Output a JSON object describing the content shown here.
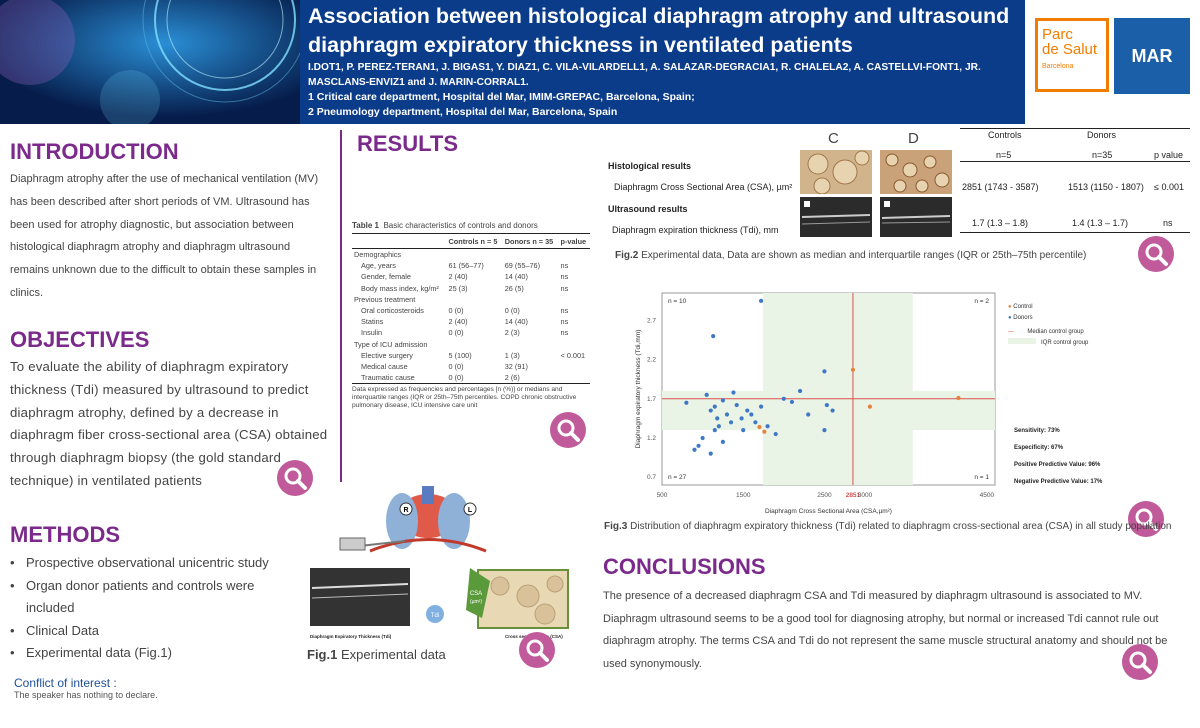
{
  "header": {
    "title": "Association between histological diaphragm atrophy and ultrasound diaphragm expiratory thickness in ventilated patients",
    "authors": "I.DOT1, P. PEREZ-TERAN1, J. BIGAS1, Y. DIAZ1, C. VILA-VILARDELL1, A. SALAZAR-DEGRACIA1, R. CHALELA2, A. CASTELLVI-FONT1, JR. MASCLANS-ENVIZ1 and J. MARIN-CORRAL1.",
    "affiliation1": "1 Critical care department, Hospital del Mar, IMIM-GREPAC, Barcelona, Spain;",
    "affiliation2": "2 Pneumology department, Hospital del Mar, Barcelona, Spain",
    "logo_parc_line1": "Parc",
    "logo_parc_line2": "de Salut",
    "logo_parc_city": "Barcelona",
    "logo_mar": "MAR"
  },
  "introduction": {
    "heading": "INTRODUCTION",
    "text": "Diaphragm atrophy after the use of mechanical ventilation (MV) has been described after short periods of VM. Ultrasound has been used for atrophy diagnostic, but association between histological diaphragm atrophy and diaphragm ultrasound remains unknown due to the difficult to obtain these samples in clinics."
  },
  "objectives": {
    "heading": "OBJECTIVES",
    "text": "To evaluate the ability of diaphragm expiratory thickness (Tdi) measured by ultrasound to predict diaphragm atrophy, defined by a decrease in diaphragm fiber cross-sectional area (CSA) obtained through diaphragm biopsy (the gold standard technique) in ventilated patients"
  },
  "methods": {
    "heading": "METHODS",
    "items": [
      "Prospective observational unicentric study",
      "Organ donor patients and controls were included",
      "Clinical Data",
      "Experimental data (Fig.1)"
    ]
  },
  "conflict": {
    "heading": "Conflict of interest :",
    "text": "The speaker has nothing to declare."
  },
  "results": {
    "heading": "RESULTS",
    "table1": {
      "caption_bold": "Table 1",
      "caption": "Basic characteristics of controls and donors",
      "headers": [
        "",
        "Controls n = 5",
        "Donors n = 35",
        "p-value"
      ],
      "rows": [
        [
          "Demographics",
          "",
          "",
          ""
        ],
        [
          "Age, years",
          "61 (56–77)",
          "69 (55–76)",
          "ns"
        ],
        [
          "Gender, female",
          "2 (40)",
          "14 (40)",
          "ns"
        ],
        [
          "Body mass index, kg/m²",
          "25 (3)",
          "26 (5)",
          "ns"
        ],
        [
          "Previous treatment",
          "",
          "",
          ""
        ],
        [
          "Oral corticosteroids",
          "0 (0)",
          "0 (0)",
          "ns"
        ],
        [
          "Statins",
          "2 (40)",
          "14 (40)",
          "ns"
        ],
        [
          "Insulin",
          "0 (0)",
          "2 (3)",
          "ns"
        ],
        [
          "Type of ICU admission",
          "",
          "",
          ""
        ],
        [
          "Elective surgery",
          "5 (100)",
          "1 (3)",
          "< 0.001"
        ],
        [
          "Medical cause",
          "0 (0)",
          "32 (91)",
          ""
        ],
        [
          "Traumatic cause",
          "0 (0)",
          "2 (6)",
          ""
        ]
      ],
      "note": "Data expressed as frequencies and percentages [n (%)] or medians and interquartile ranges (IQR or 25th–75th percentiles. COPD chronic obstructive pulmonary disease, ICU intensive care unit"
    }
  },
  "fig1": {
    "caption_bold": "Fig.1",
    "caption": "Experimental data",
    "label_r": "R",
    "label_l": "L",
    "label_tdi": "Diaphragm Expiratory Thickness (Tdi)",
    "label_csa": "Cross sectional area (CSA)",
    "label_csa_box": "CSA",
    "label_csa_unit": "(µm²)",
    "label_tdi_small": "Tdi"
  },
  "fig2": {
    "col_c": "C",
    "col_d": "D",
    "head_controls": "Controls",
    "head_donors": "Donors",
    "n_controls": "n=5",
    "n_donors": "n=35",
    "head_p": "p value",
    "hist_title": "Histological results",
    "hist_label": "Diaphragm Cross Sectional Area (CSA), µm²",
    "hist_controls": "2851 (1743 - 3587)",
    "hist_donors": "1513 (1150 - 1807)",
    "hist_p": "≤ 0.001",
    "us_title": "Ultrasound results",
    "us_label": "Diaphragm expiration thickness (Tdi), mm",
    "us_controls": "1.7 (1.3 – 1.8)",
    "us_donors": "1.4 (1.3 – 1.7)",
    "us_p": "ns",
    "caption_bold": "Fig.2",
    "caption": "Experimental data, Data are shown as median and interquartile ranges (IQR or 25th–75th percentile)"
  },
  "fig3": {
    "caption_bold": "Fig.3",
    "caption": "Distribution of diaphragm expiratory thickness (Tdi) related to diaphragm cross-sectional area (CSA) in all study population"
  },
  "chart_data": {
    "type": "scatter",
    "title": "",
    "xlabel": "Diaphragm Cross Sectional Area (CSA,µm²)",
    "ylabel": "Diaphragm expiratory thickness (Tdi,mm)",
    "xlim": [
      500,
      4600
    ],
    "ylim": [
      0.6,
      3.05
    ],
    "x_ticks": [
      "500",
      "1500",
      "2500",
      "2851",
      "3000",
      "4500"
    ],
    "x_tick_values": [
      500,
      1500,
      2500,
      2851,
      3000,
      4500
    ],
    "y_ticks": [
      "0.7",
      "1.2",
      "1.7",
      "2.2",
      "2.7"
    ],
    "y_tick_values": [
      0.7,
      1.2,
      1.7,
      2.2,
      2.7
    ],
    "median_x": 2851,
    "median_y": 1.7,
    "iqr_x": [
      1743,
      3587
    ],
    "iqr_y": [
      1.3,
      1.8
    ],
    "quadrant_counts": [
      "n = 10",
      "n = 2",
      "n = 27",
      "n = 1"
    ],
    "legend": [
      "Control",
      "Donors",
      "Median control group",
      "IQR control group"
    ],
    "metrics": [
      "Sensitivity: 73%",
      "Especificity: 67%",
      "Positive Predictive Value: 96%",
      "Negative Predictive Value: 17%"
    ],
    "series": [
      {
        "name": "Control",
        "color": "#e8823a",
        "x": [
          2851,
          3060,
          4150,
          1700,
          1760
        ],
        "y": [
          2.07,
          1.6,
          1.71,
          1.34,
          1.28
        ]
      },
      {
        "name": "Donors",
        "color": "#3f78c6",
        "x": [
          1720,
          1130,
          2500,
          2530,
          800,
          950,
          1050,
          1100,
          1150,
          1180,
          1200,
          1250,
          1300,
          1350,
          1380,
          1420,
          1480,
          1500,
          1550,
          1600,
          1650,
          1720,
          1800,
          1900,
          2000,
          2100,
          2200,
          2300,
          2500,
          2600,
          1000,
          1150,
          900,
          1250,
          1100
        ],
        "y": [
          2.95,
          2.5,
          2.05,
          1.62,
          1.65,
          1.1,
          1.75,
          1.55,
          1.6,
          1.45,
          1.35,
          1.68,
          1.5,
          1.4,
          1.78,
          1.62,
          1.45,
          1.3,
          1.55,
          1.5,
          1.4,
          1.6,
          1.35,
          1.25,
          1.7,
          1.66,
          1.8,
          1.5,
          1.3,
          1.55,
          1.2,
          1.3,
          1.05,
          1.15,
          1.0
        ]
      }
    ]
  },
  "conclusions": {
    "heading": "CONCLUSIONS",
    "text": "The presence of a decreased diaphragm CSA and Tdi measured by diaphragm ultrasound is associated to MV. Diaphragm ultrasound seems to be a good tool for diagnosing atrophy, but normal or increased Tdi cannot rule out diaphragm atrophy. The terms CSA and Tdi do not represent the same muscle structural anatomy and should not be used synonymously."
  },
  "colors": {
    "header_bg": "#0b3c8a",
    "heading": "#7b2a8c",
    "magnify": "#c05a9a",
    "iqr_fill": "#e9f3e6",
    "median_line": "#d9534f"
  }
}
